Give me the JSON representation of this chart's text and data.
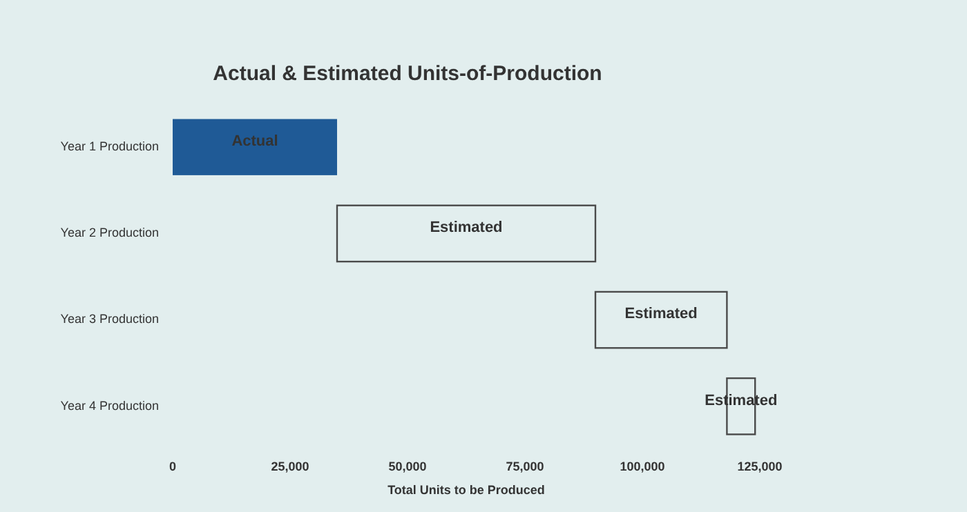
{
  "chart_data": {
    "type": "bar",
    "orientation": "horizontal",
    "title": "Actual & Estimated Units-of-Production",
    "xlabel": "Total Units to be Produced",
    "categories": [
      "Year 1 Production",
      "Year 2 Production",
      "Year 3 Production",
      "Year 4 Production"
    ],
    "series": [
      {
        "name": "Actual",
        "color": "#1f5a96",
        "values": [
          35000,
          null,
          null,
          null
        ],
        "base": [
          0,
          null,
          null,
          null
        ]
      },
      {
        "name": "Estimated",
        "color": "#4a4a4a",
        "values": [
          null,
          55000,
          28000,
          6000
        ],
        "base": [
          null,
          35000,
          90000,
          118000
        ]
      }
    ],
    "xlim": [
      0,
      125000
    ],
    "xticks": [
      0,
      {
        "value": 25000,
        "label": "25,000"
      },
      {
        "value": 50000,
        "label": "50,000"
      },
      {
        "value": 75000,
        "label": "75,000"
      },
      {
        "value": 100000,
        "label": "100,000"
      },
      {
        "value": 125000,
        "label": "125,000"
      }
    ]
  }
}
